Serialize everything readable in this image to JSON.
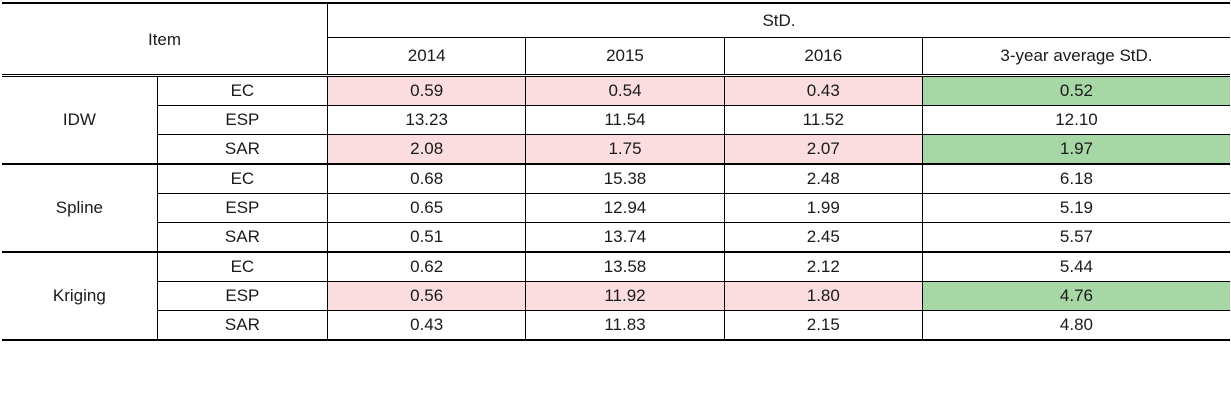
{
  "header": {
    "item": "Item",
    "std": "StD.",
    "years": [
      "2014",
      "2015",
      "2016"
    ],
    "avg": "3-year average StD."
  },
  "groups": [
    {
      "method": "IDW",
      "rows": [
        {
          "sub": "EC",
          "values": [
            "0.59",
            "0.54",
            "0.43"
          ],
          "avg": "0.52",
          "highlight": true
        },
        {
          "sub": "ESP",
          "values": [
            "13.23",
            "11.54",
            "11.52"
          ],
          "avg": "12.10",
          "highlight": false
        },
        {
          "sub": "SAR",
          "values": [
            "2.08",
            "1.75",
            "2.07"
          ],
          "avg": "1.97",
          "highlight": true
        }
      ]
    },
    {
      "method": "Spline",
      "rows": [
        {
          "sub": "EC",
          "values": [
            "0.68",
            "15.38",
            "2.48"
          ],
          "avg": "6.18",
          "highlight": false
        },
        {
          "sub": "ESP",
          "values": [
            "0.65",
            "12.94",
            "1.99"
          ],
          "avg": "5.19",
          "highlight": false
        },
        {
          "sub": "SAR",
          "values": [
            "0.51",
            "13.74",
            "2.45"
          ],
          "avg": "5.57",
          "highlight": false
        }
      ]
    },
    {
      "method": "Kriging",
      "rows": [
        {
          "sub": "EC",
          "values": [
            "0.62",
            "13.58",
            "2.12"
          ],
          "avg": "5.44",
          "highlight": false
        },
        {
          "sub": "ESP",
          "values": [
            "0.56",
            "11.92",
            "1.80"
          ],
          "avg": "4.76",
          "highlight": true
        },
        {
          "sub": "SAR",
          "values": [
            "0.43",
            "11.83",
            "2.15"
          ],
          "avg": "4.80",
          "highlight": false
        }
      ]
    }
  ],
  "colors": {
    "pink": "#fbdcdf",
    "green": "#a6d7a5"
  }
}
